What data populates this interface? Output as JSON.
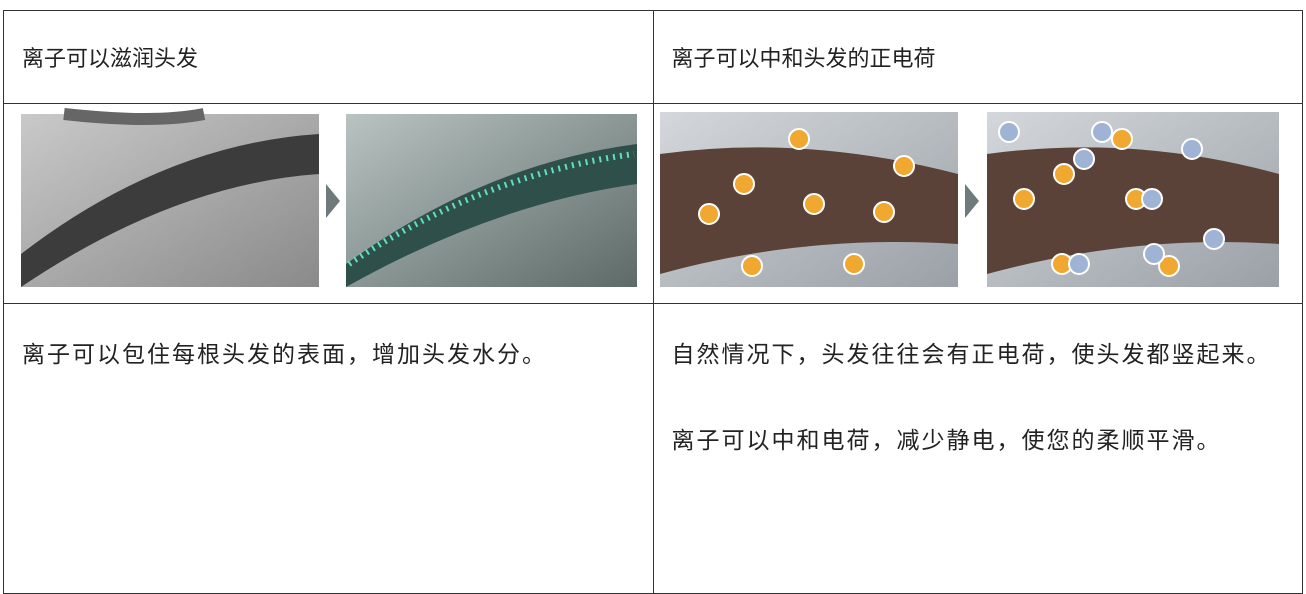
{
  "table": {
    "rows": [
      [
        "离子可以滋润头发",
        "离子可以中和头发的正电荷"
      ],
      [
        "离子可以包住每根头发的表面，增加头发水分。",
        "自然情况下，头发往往会有正电荷，使头发都竖起来。离子可以中和电荷，减少静电，使您的柔顺平滑。"
      ]
    ]
  }
}
